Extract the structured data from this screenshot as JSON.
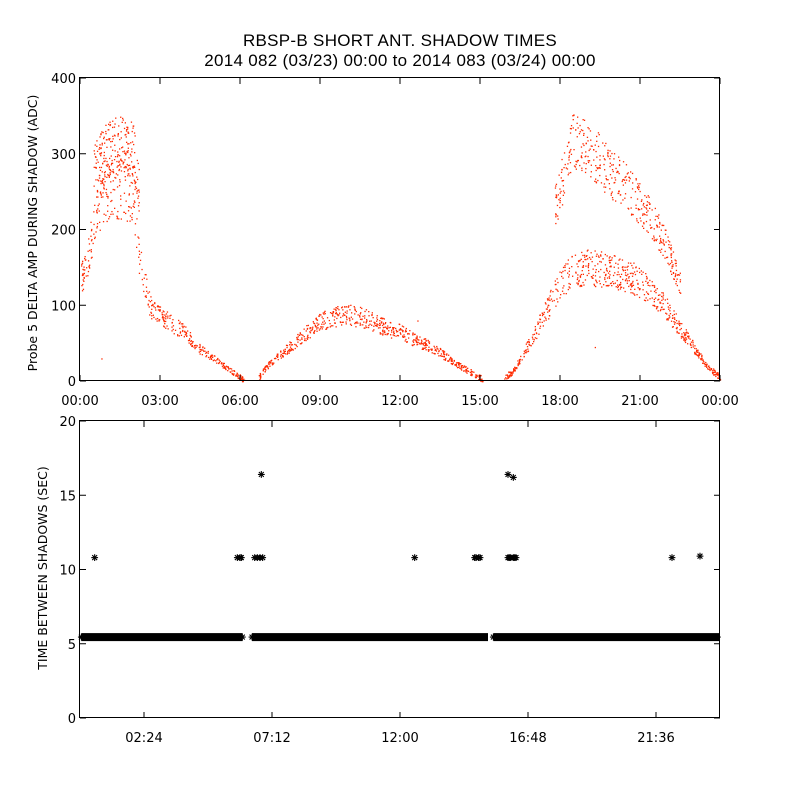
{
  "title": {
    "line1": "RBSP-B SHORT ANT. SHADOW TIMES",
    "line2": "2014 082 (03/23) 00:00 to 2014 083 (03/24) 00:00"
  },
  "colors": {
    "trace": "#ff2a00",
    "marker": "#000000",
    "axis": "#000000"
  },
  "chart_data": [
    {
      "type": "scatter",
      "name": "probe5-delta-amp",
      "ylabel": "Probe 5 DELTA AMP DURING SHADOW (ADC)",
      "xlabel": "",
      "x_units": "hours",
      "xlim": [
        0,
        24
      ],
      "ylim": [
        0,
        400
      ],
      "yticks": [
        0,
        100,
        200,
        300,
        400
      ],
      "xticks": [
        {
          "value": 0,
          "label": "00:00"
        },
        {
          "value": 3,
          "label": "03:00"
        },
        {
          "value": 6,
          "label": "06:00"
        },
        {
          "value": 9,
          "label": "09:00"
        },
        {
          "value": 12,
          "label": "12:00"
        },
        {
          "value": 15,
          "label": "15:00"
        },
        {
          "value": 18,
          "label": "18:00"
        },
        {
          "value": 21,
          "label": "21:00"
        },
        {
          "value": 24,
          "label": "00:00"
        }
      ],
      "series": [
        {
          "name": "lower band",
          "x": [
            0.0,
            0.3,
            0.6,
            1.0,
            1.5,
            2.0,
            2.2,
            2.6,
            3.0,
            3.5,
            4.0,
            4.5,
            5.0,
            5.5,
            6.0,
            6.15,
            6.7,
            7.0,
            7.5,
            8.0,
            8.5,
            9.0,
            9.5,
            10.0,
            10.5,
            11.0,
            11.5,
            12.0,
            12.5,
            13.0,
            13.5,
            14.0,
            14.5,
            15.0,
            15.1,
            15.9,
            16.2,
            16.5,
            17.0,
            17.5,
            18.0,
            18.5,
            19.0,
            19.5,
            20.0,
            20.5,
            21.0,
            21.5,
            22.0,
            22.5,
            23.0,
            23.5,
            24.0
          ],
          "y": [
            130,
            170,
            215,
            250,
            255,
            245,
            160,
            100,
            85,
            75,
            62,
            42,
            30,
            18,
            5,
            0,
            5,
            20,
            35,
            50,
            65,
            78,
            85,
            88,
            85,
            78,
            70,
            65,
            55,
            48,
            38,
            25,
            15,
            5,
            0,
            5,
            12,
            30,
            60,
            95,
            130,
            145,
            150,
            148,
            145,
            140,
            130,
            115,
            95,
            70,
            45,
            20,
            5
          ]
        },
        {
          "name": "upper band",
          "x": [
            0.5,
            1.0,
            1.5,
            2.0,
            2.2,
            17.8,
            18.5,
            19.0,
            19.5,
            20.0,
            20.5,
            21.0,
            21.5,
            22.0,
            22.5
          ],
          "y": [
            280,
            305,
            315,
            305,
            250,
            230,
            320,
            310,
            290,
            270,
            255,
            235,
            210,
            175,
            130
          ]
        },
        {
          "name": "isolated points",
          "x": [
            0.8,
            12.65,
            19.3
          ],
          "y": [
            30,
            80,
            45
          ]
        }
      ]
    },
    {
      "type": "scatter",
      "name": "time-between-shadows",
      "ylabel": "TIME BETWEEN SHADOWS (SEC)",
      "xlabel": "",
      "x_units": "hours",
      "xlim": [
        0,
        24
      ],
      "ylim": [
        0,
        20
      ],
      "yticks": [
        0,
        5,
        10,
        15,
        20
      ],
      "xticks": [
        {
          "value": 2.4,
          "label": "02:24"
        },
        {
          "value": 7.2,
          "label": "07:12"
        },
        {
          "value": 12.0,
          "label": "12:00"
        },
        {
          "value": 16.8,
          "label": "16:48"
        },
        {
          "value": 21.6,
          "label": "21:36"
        }
      ],
      "marker": "asterisk",
      "baseline": {
        "value": 5.45,
        "segments": [
          [
            0.05,
            6.1
          ],
          [
            6.45,
            15.3
          ],
          [
            15.5,
            24.0
          ]
        ]
      },
      "points": {
        "x": [
          0.55,
          5.9,
          6.0,
          6.05,
          6.55,
          6.65,
          6.75,
          6.85,
          6.8,
          12.55,
          14.8,
          14.85,
          14.95,
          15.0,
          16.05,
          16.1,
          16.15,
          16.25,
          16.3,
          16.35,
          16.05,
          16.25,
          22.2,
          23.25
        ],
        "y": [
          10.8,
          10.8,
          10.8,
          10.8,
          10.8,
          10.8,
          10.8,
          10.8,
          16.4,
          10.8,
          10.8,
          10.8,
          10.8,
          10.8,
          10.8,
          10.8,
          10.8,
          10.8,
          10.8,
          10.8,
          16.4,
          16.2,
          10.8,
          10.9
        ]
      }
    }
  ]
}
